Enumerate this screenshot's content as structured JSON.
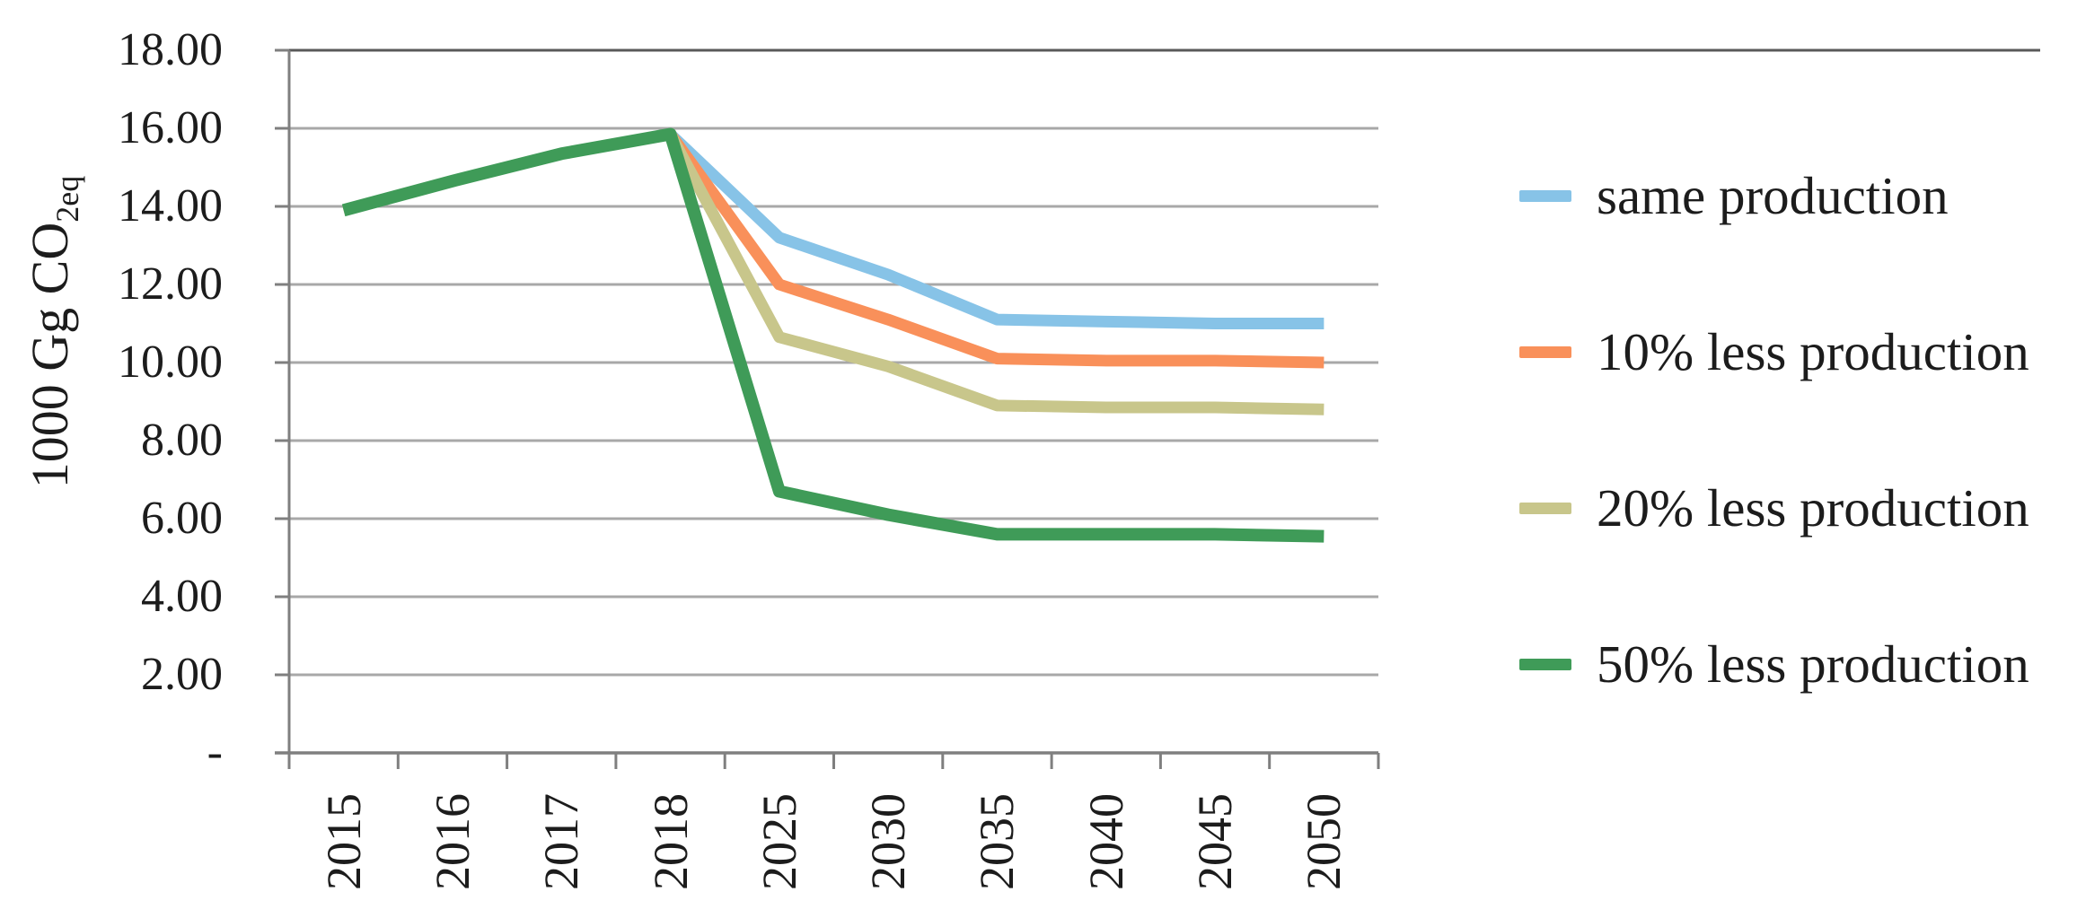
{
  "page": {
    "background": "#FFFFFF"
  },
  "y_axis": {
    "title_main": "1000 Gg CO",
    "title_sub": "2eq"
  },
  "colors": {
    "grid": "#A8A8A8",
    "top_border": "#595959",
    "axis": "#7F7F7F",
    "text": "#1C1C1C"
  },
  "chart_data": {
    "type": "line",
    "title": "",
    "xlabel": "",
    "ylabel": "1000 Gg CO2eq",
    "categories": [
      "2015",
      "2016",
      "2017",
      "2018",
      "2025",
      "2030",
      "2035",
      "2040",
      "2045",
      "2050"
    ],
    "ylim": [
      0,
      18
    ],
    "grid": "horizontal-only",
    "legend_position": "right",
    "yticks": [
      {
        "label": "18.00",
        "value": 18
      },
      {
        "label": "16.00",
        "value": 16
      },
      {
        "label": "14.00",
        "value": 14
      },
      {
        "label": "12.00",
        "value": 12
      },
      {
        "label": "10.00",
        "value": 10
      },
      {
        "label": "8.00",
        "value": 8
      },
      {
        "label": "6.00",
        "value": 6
      },
      {
        "label": "4.00",
        "value": 4
      },
      {
        "label": "2.00",
        "value": 2
      },
      {
        "label": "-",
        "value": 0
      }
    ],
    "series": [
      {
        "name": "same production",
        "color": "#87C3E7",
        "values": [
          13.9,
          14.65,
          15.35,
          15.85,
          13.2,
          12.25,
          11.1,
          11.05,
          11.0,
          11.0
        ]
      },
      {
        "name": "10% less production",
        "color": "#F9905A",
        "values": [
          13.9,
          14.65,
          15.35,
          15.85,
          12.0,
          11.1,
          10.1,
          10.05,
          10.05,
          10.0
        ]
      },
      {
        "name": "20% less production",
        "color": "#C8C68B",
        "values": [
          13.9,
          14.65,
          15.35,
          15.85,
          10.65,
          9.9,
          8.9,
          8.85,
          8.85,
          8.8
        ]
      },
      {
        "name": "50% less production",
        "color": "#3F9B58",
        "values": [
          13.9,
          14.65,
          15.35,
          15.85,
          6.7,
          6.1,
          5.6,
          5.6,
          5.6,
          5.55
        ]
      }
    ]
  }
}
